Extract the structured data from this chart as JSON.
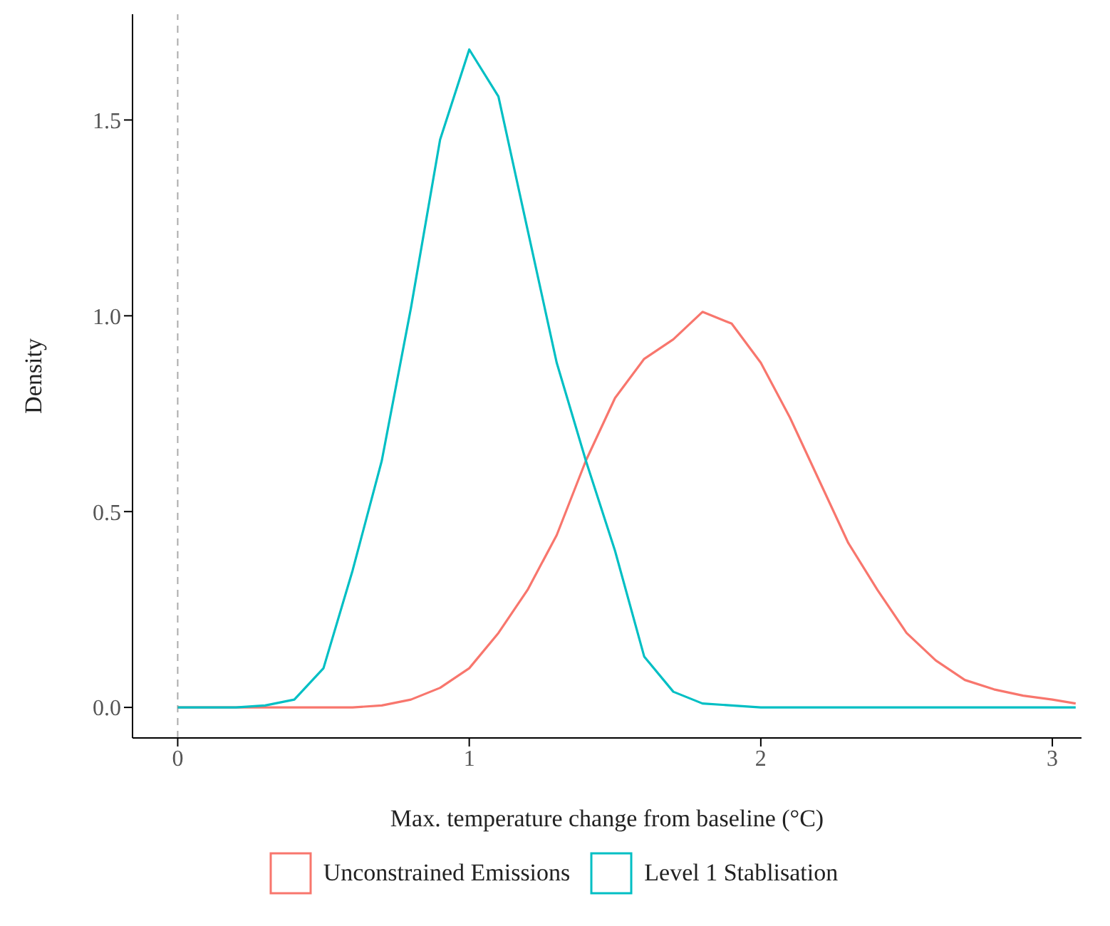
{
  "chart_data": {
    "type": "line",
    "xlabel": "Max. temperature change from baseline (°C)",
    "ylabel": "Density",
    "x": [
      0,
      0.1,
      0.2,
      0.3,
      0.4,
      0.5,
      0.6,
      0.7,
      0.8,
      0.9,
      1.0,
      1.1,
      1.2,
      1.3,
      1.4,
      1.5,
      1.6,
      1.7,
      1.8,
      1.9,
      2.0,
      2.1,
      2.2,
      2.3,
      2.4,
      2.5,
      2.6,
      2.7,
      2.8,
      2.9,
      3.0,
      3.08
    ],
    "series": [
      {
        "name": "Unconstrained Emissions",
        "color": "#f8766d",
        "values": [
          0,
          0,
          0,
          0,
          0,
          0,
          0,
          0.005,
          0.02,
          0.05,
          0.1,
          0.19,
          0.3,
          0.44,
          0.63,
          0.79,
          0.89,
          0.94,
          1.01,
          0.98,
          0.88,
          0.74,
          0.58,
          0.42,
          0.3,
          0.19,
          0.12,
          0.07,
          0.046,
          0.03,
          0.02,
          0.01
        ]
      },
      {
        "name": "Level 1 Stablisation",
        "color": "#00bfc4",
        "values": [
          0,
          0,
          0,
          0.005,
          0.02,
          0.1,
          0.35,
          0.63,
          1.02,
          1.45,
          1.68,
          1.56,
          1.22,
          0.88,
          0.63,
          0.4,
          0.13,
          0.04,
          0.01,
          0.005,
          0,
          0,
          0,
          0,
          0,
          0,
          0,
          0,
          0,
          0,
          0,
          0
        ]
      }
    ],
    "xlim": [
      -0.155,
      3.1
    ],
    "xticks": [
      0,
      1,
      2,
      3
    ],
    "ylim": [
      -0.078,
      1.77
    ],
    "yticks": [
      {
        "value": 0,
        "label": "0.0"
      },
      {
        "value": 0.5,
        "label": "0.5"
      },
      {
        "value": 1,
        "label": "1.0"
      },
      {
        "value": 1.5,
        "label": "1.5"
      }
    ],
    "ref_lines": [
      {
        "axis": "x",
        "value": 0,
        "color": "#aaaaaa",
        "line_style": "dashed"
      }
    ],
    "grid": false,
    "legend": "bottom",
    "marker": "none",
    "line_style": "solid"
  }
}
